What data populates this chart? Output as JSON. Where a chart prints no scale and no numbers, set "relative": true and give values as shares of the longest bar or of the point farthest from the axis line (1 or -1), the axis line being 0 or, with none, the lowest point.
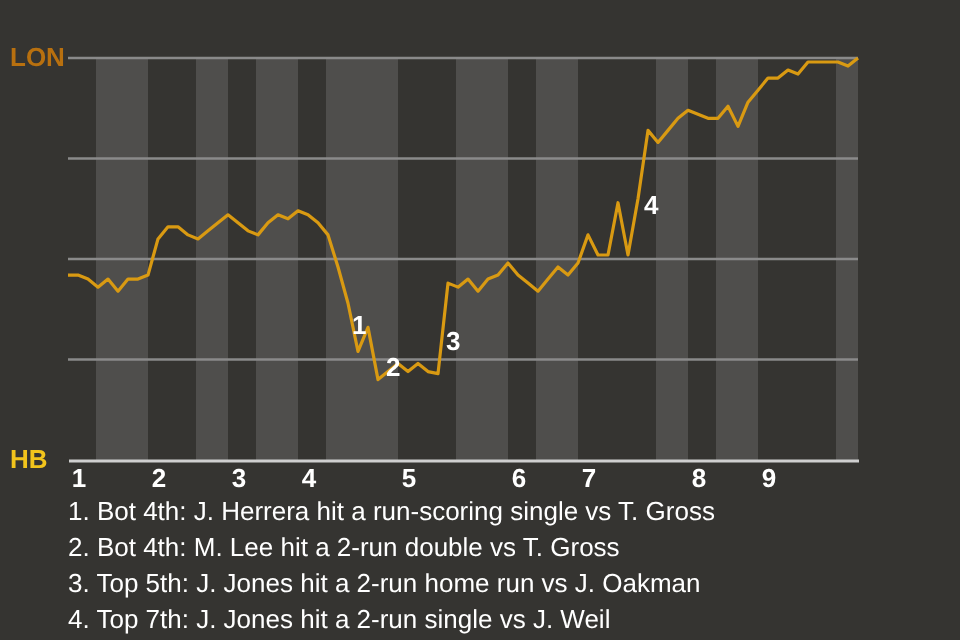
{
  "chart_data": {
    "type": "line",
    "relative": true,
    "categories": [
      null,
      "1",
      null,
      null,
      null,
      null,
      null,
      null,
      null,
      "2",
      null,
      null,
      null,
      null,
      null,
      null,
      null,
      "3",
      null,
      null,
      null,
      null,
      null,
      null,
      "4",
      null,
      null,
      null,
      null,
      null,
      null,
      null,
      null,
      null,
      "5",
      null,
      null,
      null,
      null,
      null,
      null,
      null,
      null,
      null,
      null,
      "6",
      null,
      null,
      null,
      null,
      null,
      null,
      "7",
      null,
      null,
      null,
      null,
      null,
      null,
      null,
      null,
      null,
      null,
      "8",
      null,
      null,
      null,
      null,
      null,
      null,
      "9",
      null,
      null,
      null,
      null,
      null,
      null,
      null,
      null,
      null
    ],
    "series": [
      {
        "color": "#d99a12",
        "values": [
          0.46,
          0.46,
          0.45,
          0.43,
          0.45,
          0.42,
          0.45,
          0.45,
          0.46,
          0.55,
          0.58,
          0.58,
          0.56,
          0.55,
          0.57,
          0.59,
          0.61,
          0.59,
          0.57,
          0.56,
          0.59,
          0.61,
          0.6,
          0.62,
          0.61,
          0.59,
          0.56,
          0.48,
          0.39,
          0.27,
          0.33,
          0.2,
          0.22,
          0.24,
          0.22,
          0.24,
          0.22,
          0.215,
          0.44,
          0.43,
          0.45,
          0.42,
          0.45,
          0.46,
          0.49,
          0.46,
          0.44,
          0.42,
          0.45,
          0.48,
          0.46,
          0.49,
          0.56,
          0.51,
          0.51,
          0.64,
          0.51,
          0.65,
          0.82,
          0.79,
          0.82,
          0.85,
          0.87,
          0.86,
          0.85,
          0.85,
          0.88,
          0.83,
          0.89,
          0.92,
          0.95,
          0.95,
          0.97,
          0.96,
          0.99,
          0.99,
          0.99,
          0.99,
          0.98,
          1
        ]
      }
    ],
    "grid": "y",
    "line_style": "solid",
    "annotations": [
      "LON",
      "HB",
      "1",
      "2",
      "3",
      "4",
      "1. Bot 4th: J. Herrera hit a run-scoring single vs T. Gross",
      "2. Bot 4th: M. Lee hit a 2-run double vs T. Gross",
      "3. Top 5th: J. Jones hit a 2-run home run vs J. Oakman",
      "4. Top 7th: J. Jones hit a 2-run single vs J. Weil"
    ]
  }
}
